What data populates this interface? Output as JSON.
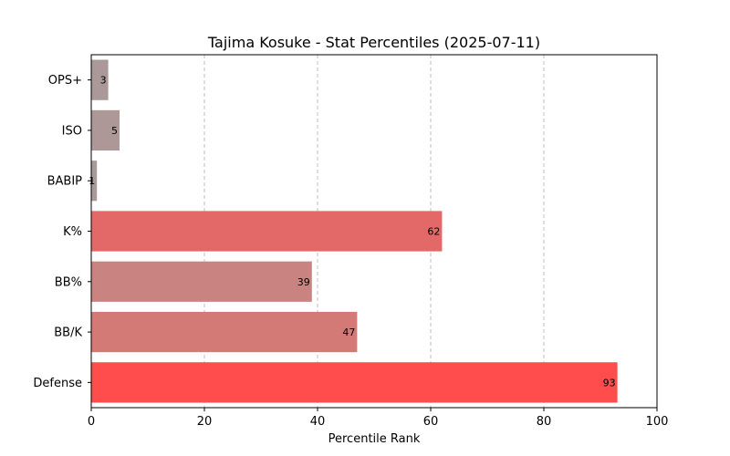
{
  "chart_data": {
    "type": "bar",
    "orientation": "horizontal",
    "title": "Tajima Kosuke - Stat Percentiles (2025-07-11)",
    "xlabel": "Percentile Rank",
    "ylabel": "",
    "xlim": [
      0,
      100
    ],
    "xticks": [
      0,
      20,
      40,
      60,
      80,
      100
    ],
    "grid": "x-dashed",
    "categories": [
      "OPS+",
      "ISO",
      "BABIP",
      "K%",
      "BB%",
      "BB/K",
      "Defense"
    ],
    "values": [
      3,
      5,
      1,
      62,
      39,
      47,
      93
    ],
    "colors": [
      "#ab9898",
      "#ae9797",
      "#a99a9a",
      "#e36868",
      "#c98481",
      "#d37a77",
      "#ff4c4c"
    ]
  }
}
